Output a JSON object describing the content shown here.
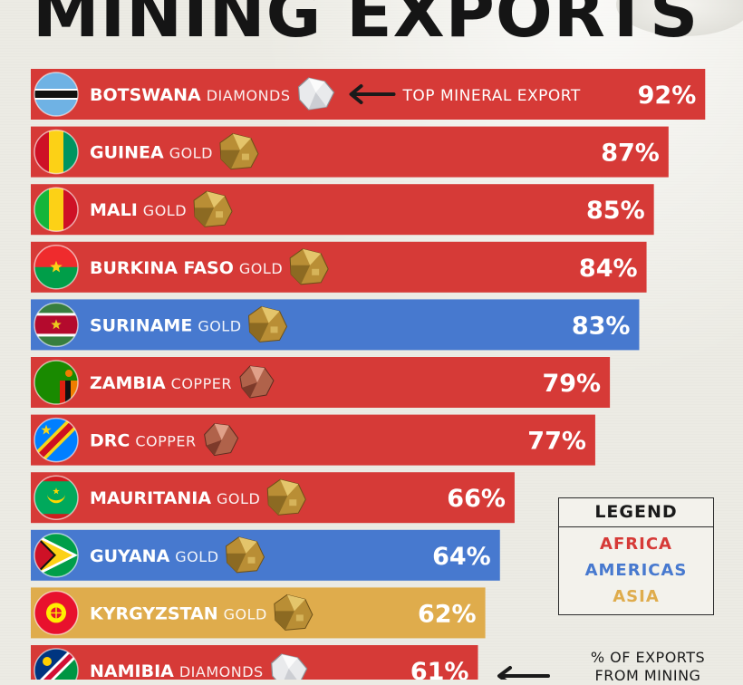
{
  "title": "MINING EXPORTS",
  "callout": "TOP MINERAL EXPORT",
  "legend": {
    "title": "LEGEND",
    "items": [
      {
        "label": "AFRICA",
        "color": "#d63a37"
      },
      {
        "label": "AMERICAS",
        "color": "#4779cf"
      },
      {
        "label": "ASIA",
        "color": "#dfac4c"
      }
    ]
  },
  "note": [
    "% OF EXPORTS",
    "FROM MINING"
  ],
  "chart_data": {
    "type": "bar",
    "orientation": "horizontal",
    "title": "MINING EXPORTS",
    "xlabel": "% OF EXPORTS FROM MINING",
    "ylabel": "",
    "xlim": [
      0,
      100
    ],
    "value_format": "{v}%",
    "categories": [
      "BOTSWANA",
      "GUINEA",
      "MALI",
      "BURKINA FASO",
      "SURINAME",
      "ZAMBIA",
      "DRC",
      "MAURITANIA",
      "GUYANA",
      "KYRGYZSTAN",
      "NAMIBIA"
    ],
    "values": [
      92,
      87,
      85,
      84,
      83,
      79,
      77,
      66,
      64,
      62,
      61
    ],
    "top_mineral": [
      "DIAMONDS",
      "GOLD",
      "GOLD",
      "GOLD",
      "GOLD",
      "COPPER",
      "COPPER",
      "GOLD",
      "GOLD",
      "GOLD",
      "DIAMONDS"
    ],
    "region": [
      "AFRICA",
      "AFRICA",
      "AFRICA",
      "AFRICA",
      "AMERICAS",
      "AFRICA",
      "AFRICA",
      "AFRICA",
      "AMERICAS",
      "ASIA",
      "AFRICA"
    ],
    "flags": [
      "botswana-flag",
      "guinea-flag",
      "mali-flag",
      "burkina-faso-flag",
      "suriname-flag",
      "zambia-flag",
      "drc-flag",
      "mauritania-flag",
      "guyana-flag",
      "kyrgyzstan-flag",
      "namibia-flag"
    ],
    "mineral_icons": {
      "DIAMONDS": "diamond-icon",
      "GOLD": "gold-nugget-icon",
      "COPPER": "copper-nugget-icon"
    },
    "legend_position": "bottom-right"
  }
}
